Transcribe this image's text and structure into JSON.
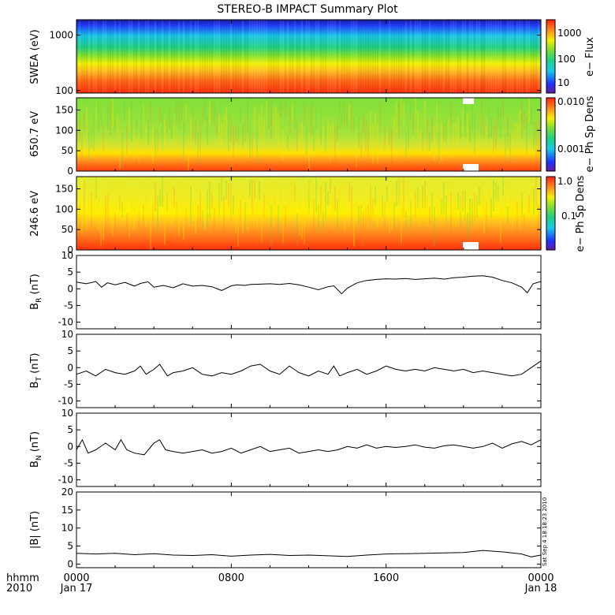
{
  "title": "STEREO-B IMPACT Summary Plot",
  "timestamp_stamp": "Sat Sep  4 18:18:23 2010",
  "chart_data": [
    {
      "type": "heatmap",
      "ylabel": "SWEA (eV)",
      "y_scale": "log",
      "ylim": [
        90,
        1900
      ],
      "yticks": [
        "1000",
        "100"
      ],
      "colorbar": {
        "label": "e− Flux",
        "scale": "log",
        "ticks": [
          "1000",
          "100",
          "10"
        ]
      }
    },
    {
      "type": "heatmap",
      "ylabel": "650.7 eV",
      "ylim": [
        0,
        180
      ],
      "yticks": [
        "150",
        "100",
        "50",
        "0"
      ],
      "colorbar": {
        "label": "e− Ph Sp Dens",
        "scale": "log",
        "ticks": [
          "0.010",
          "0.001"
        ]
      }
    },
    {
      "type": "heatmap",
      "ylabel": "246.6 eV",
      "ylim": [
        0,
        180
      ],
      "yticks": [
        "150",
        "100",
        "50",
        "0"
      ],
      "colorbar": {
        "label": "e− Ph Sp Dens",
        "scale": "log",
        "ticks": [
          "1.0",
          "0.1"
        ]
      }
    },
    {
      "type": "line",
      "ylabel": "B",
      "ylabel_sub": "R",
      "ylabel_unit": "(nT)",
      "ylim": [
        -12,
        10
      ],
      "yticks": [
        "10",
        "5",
        "0",
        "-5",
        "-10"
      ],
      "x_hours": [
        0,
        0.5,
        1,
        1.3,
        1.6,
        2,
        2.5,
        3,
        3.3,
        3.7,
        4,
        4.5,
        5,
        5.5,
        6,
        6.5,
        7,
        7.5,
        8,
        8.3,
        8.7,
        9,
        9.5,
        10,
        10.5,
        11,
        11.5,
        12,
        12.5,
        13,
        13.3,
        13.7,
        14,
        14.5,
        15,
        15.5,
        16,
        16.5,
        17,
        17.5,
        18,
        18.5,
        19,
        19.5,
        20,
        20.5,
        21,
        21.5,
        22,
        22.5,
        23,
        23.3,
        23.6,
        24
      ],
      "values": [
        2,
        1.5,
        2.2,
        0.5,
        1.8,
        1.2,
        1.9,
        0.8,
        1.6,
        2.1,
        0.5,
        1,
        0.3,
        1.5,
        0.8,
        1,
        0.6,
        -0.5,
        0.9,
        1.2,
        1,
        1.3,
        1.4,
        1.5,
        1.3,
        1.6,
        1.2,
        0.5,
        -0.3,
        0.6,
        0.9,
        -1.5,
        0.2,
        1.8,
        2.5,
        2.8,
        3,
        2.9,
        3.1,
        2.8,
        3,
        3.2,
        2.9,
        3.3,
        3.5,
        3.8,
        3.9,
        3.5,
        2.5,
        1.8,
        0.5,
        -1.2,
        1.5,
        2.2
      ]
    },
    {
      "type": "line",
      "ylabel": "B",
      "ylabel_sub": "T",
      "ylabel_unit": "(nT)",
      "ylim": [
        -12,
        10
      ],
      "yticks": [
        "10",
        "5",
        "0",
        "-5",
        "-10"
      ],
      "x_hours": [
        0,
        0.5,
        1,
        1.5,
        2,
        2.5,
        3,
        3.3,
        3.6,
        4,
        4.3,
        4.7,
        5,
        5.5,
        6,
        6.5,
        7,
        7.5,
        8,
        8.5,
        9,
        9.5,
        10,
        10.5,
        11,
        11.5,
        12,
        12.5,
        13,
        13.3,
        13.6,
        14,
        14.5,
        15,
        15.5,
        16,
        16.5,
        17,
        17.5,
        18,
        18.5,
        19,
        19.5,
        20,
        20.5,
        21,
        21.5,
        22,
        22.5,
        23,
        23.5,
        24
      ],
      "values": [
        -2,
        -1,
        -2.5,
        -0.5,
        -1.5,
        -2,
        -1,
        0.5,
        -2,
        -0.5,
        1,
        -2.5,
        -1.5,
        -1,
        0,
        -2,
        -2.5,
        -1.5,
        -2,
        -1,
        0.5,
        1,
        -1,
        -2,
        0.5,
        -1.5,
        -2.5,
        -1,
        -2,
        0.5,
        -2.5,
        -1.5,
        -0.5,
        -2,
        -1,
        0.5,
        -0.5,
        -1,
        -0.5,
        -1,
        0,
        -0.5,
        -1,
        -0.5,
        -1.5,
        -1,
        -1.5,
        -2,
        -2.5,
        -2,
        0,
        2
      ]
    },
    {
      "type": "line",
      "ylabel": "B",
      "ylabel_sub": "N",
      "ylabel_unit": "(nT)",
      "ylim": [
        -12,
        10
      ],
      "yticks": [
        "10",
        "5",
        "0",
        "-5",
        "-10"
      ],
      "x_hours": [
        0,
        0.3,
        0.6,
        1,
        1.5,
        2,
        2.3,
        2.6,
        3,
        3.5,
        4,
        4.3,
        4.6,
        5,
        5.5,
        6,
        6.5,
        7,
        7.5,
        8,
        8.5,
        9,
        9.5,
        10,
        10.5,
        11,
        11.5,
        12,
        12.5,
        13,
        13.5,
        14,
        14.5,
        15,
        15.5,
        16,
        16.5,
        17,
        17.5,
        18,
        18.5,
        19,
        19.5,
        20,
        20.5,
        21,
        21.5,
        22,
        22.5,
        23,
        23.5,
        24
      ],
      "values": [
        -1,
        2,
        -2,
        -1,
        1,
        -1,
        2,
        -1,
        -2,
        -2.5,
        1,
        2,
        -1,
        -1.5,
        -2,
        -1.5,
        -1,
        -2,
        -1.5,
        -0.5,
        -2,
        -1,
        0,
        -1.5,
        -1,
        -0.5,
        -2,
        -1.5,
        -1,
        -1.5,
        -1,
        0,
        -0.5,
        0.5,
        -0.5,
        0,
        -0.3,
        0,
        0.5,
        -0.2,
        -0.5,
        0.2,
        0.5,
        0,
        -0.5,
        0,
        1,
        -0.5,
        0.8,
        1.5,
        0.5,
        2
      ]
    },
    {
      "type": "line",
      "ylabel": "|B| (nT)",
      "ylim": [
        -1,
        20
      ],
      "yticks": [
        "20",
        "15",
        "10",
        "5",
        "0"
      ],
      "x_hours": [
        0,
        1,
        2,
        3,
        4,
        5,
        6,
        7,
        8,
        9,
        10,
        11,
        12,
        13,
        14,
        15,
        16,
        17,
        18,
        19,
        20,
        21,
        22,
        23,
        23.5,
        24
      ],
      "values": [
        3,
        2.8,
        3,
        2.6,
        2.9,
        2.5,
        2.4,
        2.6,
        2.2,
        2.5,
        2.7,
        2.4,
        2.5,
        2.3,
        2.1,
        2.5,
        2.8,
        2.9,
        3,
        3.1,
        3.2,
        3.8,
        3.4,
        2.8,
        2,
        2.5
      ]
    }
  ],
  "x_axis": {
    "row1_label": "hhmm",
    "row2_label": "2010",
    "ticks": [
      {
        "time": "0000",
        "date": "Jan 17"
      },
      {
        "time": "0800",
        "date": ""
      },
      {
        "time": "1600",
        "date": ""
      },
      {
        "time": "0000",
        "date": "Jan 18"
      }
    ]
  }
}
